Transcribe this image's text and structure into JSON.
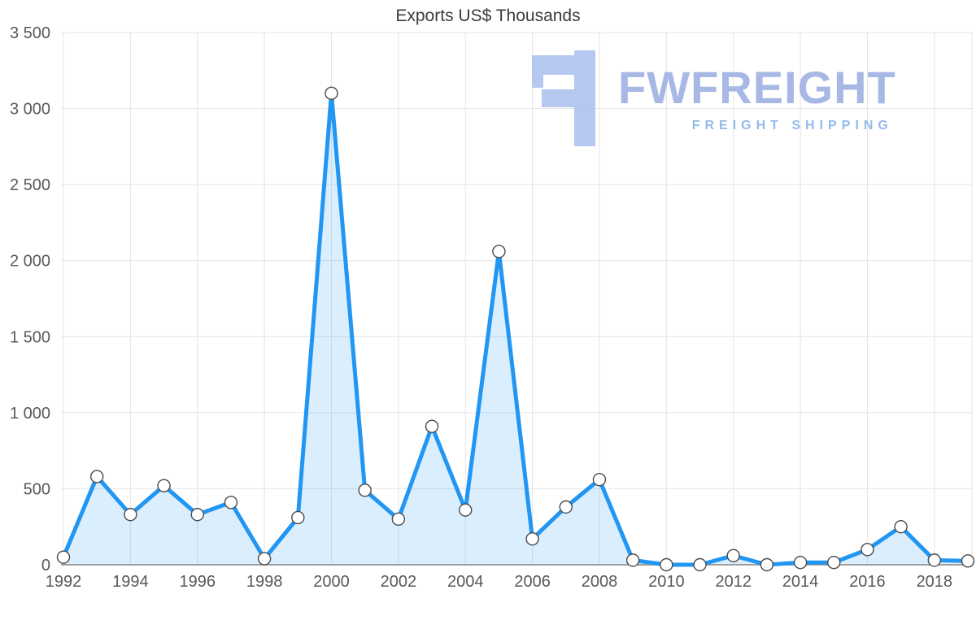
{
  "chart_data": {
    "type": "area",
    "title": "Exports US$ Thousands",
    "x": [
      1992,
      1993,
      1994,
      1995,
      1996,
      1997,
      1998,
      1999,
      2000,
      2001,
      2002,
      2003,
      2004,
      2005,
      2006,
      2007,
      2008,
      2009,
      2010,
      2011,
      2012,
      2013,
      2014,
      2015,
      2016,
      2017,
      2018,
      2019
    ],
    "values": [
      50,
      580,
      330,
      520,
      330,
      410,
      40,
      310,
      3100,
      490,
      300,
      910,
      360,
      2060,
      170,
      380,
      560,
      30,
      0,
      0,
      60,
      0,
      15,
      15,
      100,
      250,
      30,
      25
    ],
    "xlabel": "",
    "ylabel": "",
    "ylim": [
      0,
      3500
    ],
    "ytick_step": 500,
    "xtick_step": 2,
    "y_tick_labels": [
      "0",
      "500",
      "1 000",
      "1 500",
      "2 000",
      "2 500",
      "3 000",
      "3 500"
    ],
    "x_tick_labels": [
      "1992",
      "1994",
      "1996",
      "1998",
      "2000",
      "2002",
      "2004",
      "2006",
      "2008",
      "2010",
      "2012",
      "2014",
      "2016",
      "2018"
    ],
    "grid": true,
    "legend": "none",
    "line_color": "#2196f3",
    "fill_color": "rgba(33,150,243,0.16)",
    "marker_style": "white-circle-dark-outline"
  },
  "watermark": {
    "brand": "FWFREIGHT",
    "tagline": "FREIGHT SHIPPING",
    "color": "#a7b8e5"
  }
}
